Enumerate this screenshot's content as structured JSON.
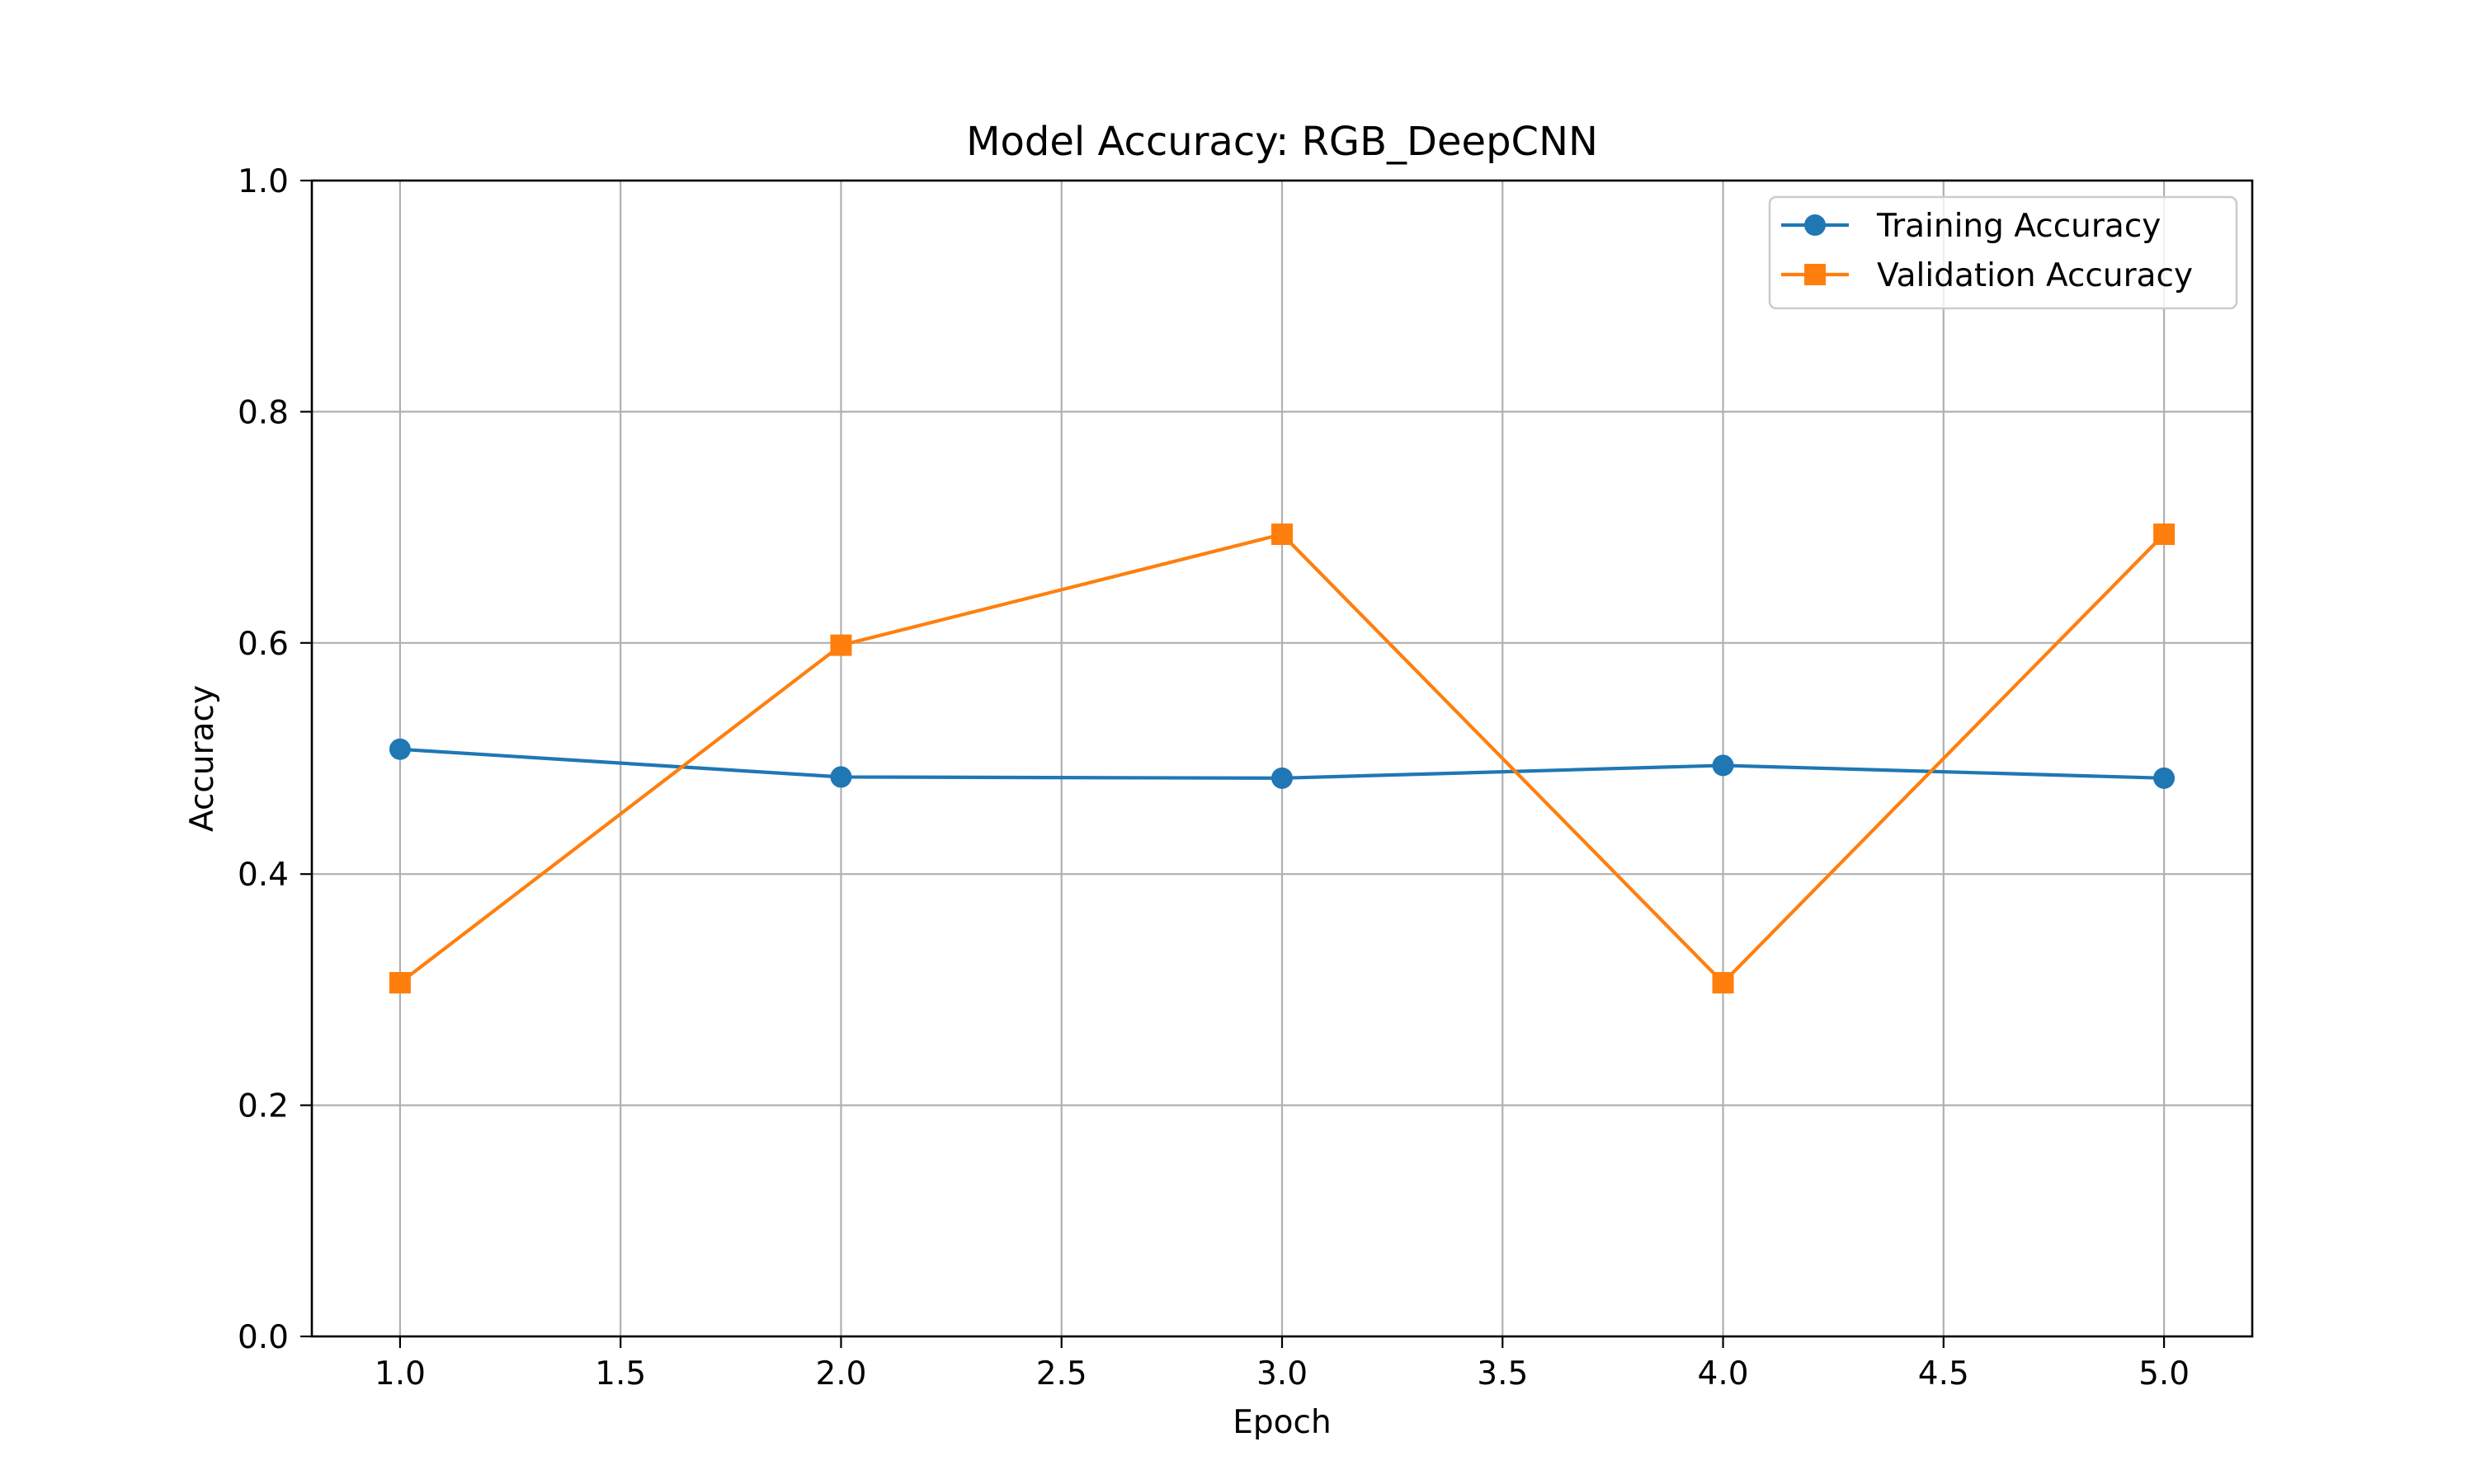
{
  "chart_data": {
    "type": "line",
    "title": "Model Accuracy: RGB_DeepCNN",
    "xlabel": "Epoch",
    "ylabel": "Accuracy",
    "xlim": [
      0.8,
      5.2
    ],
    "ylim": [
      0.0,
      1.0
    ],
    "xticks": [
      "1.0",
      "1.5",
      "2.0",
      "2.5",
      "3.0",
      "3.5",
      "4.0",
      "4.5",
      "5.0"
    ],
    "yticks": [
      "0.0",
      "0.2",
      "0.4",
      "0.6",
      "0.8",
      "1.0"
    ],
    "grid": true,
    "legend_position": "upper-right",
    "x": [
      1,
      2,
      3,
      4,
      5
    ],
    "series": [
      {
        "name": "Training Accuracy",
        "values": [
          0.508,
          0.484,
          0.483,
          0.494,
          0.483
        ],
        "color": "#1f77b4",
        "marker": "circle"
      },
      {
        "name": "Validation Accuracy",
        "values": [
          0.306,
          0.598,
          0.694,
          0.306,
          0.694
        ],
        "color": "#ff7f0e",
        "marker": "square"
      }
    ]
  }
}
